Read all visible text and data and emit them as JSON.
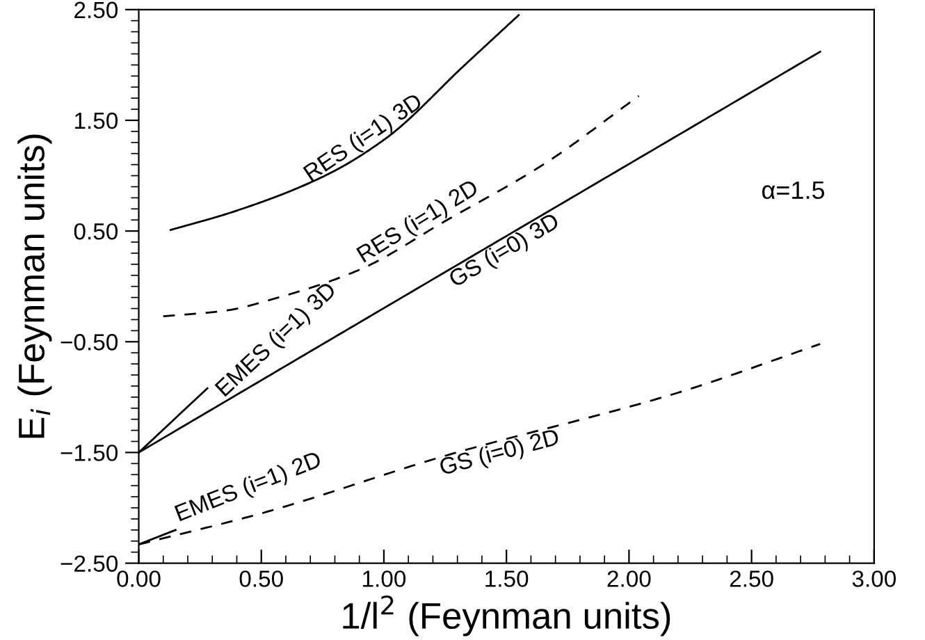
{
  "chart_data": {
    "type": "line",
    "xlabel": "1/l$^{2}$ (Feynman units)",
    "ylabel": "E$_{i}$ (Feynman units)",
    "xlim": [
      0,
      3
    ],
    "ylim": [
      -2.5,
      2.5
    ],
    "xticks": [
      {
        "value": 0,
        "label": "0.00"
      },
      {
        "value": 0.5,
        "label": "0.50"
      },
      {
        "value": 1,
        "label": "1.00"
      },
      {
        "value": 1.5,
        "label": "1.50"
      },
      {
        "value": 2,
        "label": "2.00"
      },
      {
        "value": 2.5,
        "label": "2.50"
      },
      {
        "value": 3,
        "label": "3.00"
      }
    ],
    "yticks": [
      {
        "value": -2.5,
        "label": "−2.50"
      },
      {
        "value": -1.5,
        "label": "−1.50"
      },
      {
        "value": -0.5,
        "label": "−0.50"
      },
      {
        "value": 0.5,
        "label": "0.50"
      },
      {
        "value": 1.5,
        "label": "1.50"
      },
      {
        "value": 2.5,
        "label": "2.50"
      }
    ],
    "grid": false,
    "legend": false,
    "marker": "none",
    "series": [
      {
        "name": "RES (i=1) 3D",
        "color": "#000000",
        "line_style": "solid",
        "x": [
          0.13,
          0.38,
          0.76,
          1.01,
          1.33,
          1.55
        ],
        "values": [
          0.51,
          0.67,
          1.0,
          1.34,
          2.0,
          2.45
        ]
      },
      {
        "name": "RES (i=1) 2D",
        "color": "#000000",
        "line_style": "dashed",
        "x": [
          0.1,
          0.35,
          0.57,
          0.9,
          1.25,
          1.65,
          2.04
        ],
        "values": [
          -0.27,
          -0.22,
          -0.1,
          0.15,
          0.59,
          1.1,
          1.72
        ]
      },
      {
        "name": "GS (i=0) 3D",
        "color": "#000000",
        "line_style": "solid",
        "x": [
          0,
          1.02,
          2.78
        ],
        "values": [
          -1.5,
          -0.17,
          2.12
        ]
      },
      {
        "name": "EMES (i=1) 3D",
        "color": "#000000",
        "line_style": "solid",
        "x": [
          0,
          0.28
        ],
        "values": [
          -1.5,
          -0.92
        ]
      },
      {
        "name": "GS (i=0) 2D",
        "color": "#000000",
        "line_style": "dashed",
        "x": [
          0,
          0.5,
          1.25,
          2.2,
          2.78
        ],
        "values": [
          -2.33,
          -2.05,
          -1.53,
          -0.96,
          -0.52
        ]
      },
      {
        "name": "EMES (i=1) 2D",
        "color": "#000000",
        "line_style": "solid",
        "x": [
          0,
          0.15
        ],
        "values": [
          -2.33,
          -2.2
        ]
      }
    ],
    "annotations": [
      "α=1.5"
    ]
  }
}
